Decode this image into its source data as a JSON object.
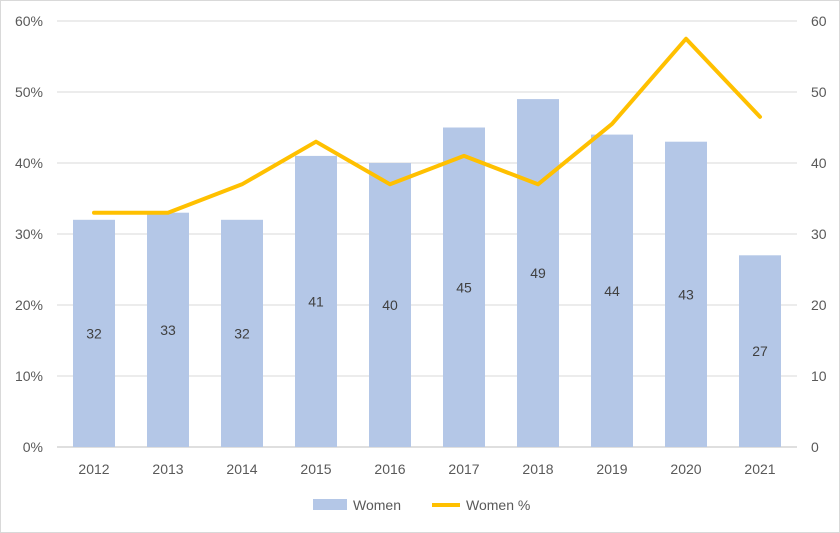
{
  "chart_data": {
    "type": "bar",
    "categories": [
      "2012",
      "2013",
      "2014",
      "2015",
      "2016",
      "2017",
      "2018",
      "2019",
      "2020",
      "2021"
    ],
    "series": [
      {
        "name": "Women",
        "type": "bar",
        "axis": "right",
        "values": [
          32,
          33,
          32,
          41,
          40,
          45,
          49,
          44,
          43,
          27
        ],
        "data_labels": [
          "32",
          "33",
          "32",
          "41",
          "40",
          "45",
          "49",
          "44",
          "43",
          "27"
        ],
        "color": "#b4c7e7"
      },
      {
        "name": "Women %",
        "type": "line",
        "axis": "left",
        "values": [
          0.33,
          0.33,
          0.37,
          0.43,
          0.37,
          0.41,
          0.37,
          0.455,
          0.575,
          0.465
        ],
        "color": "#ffc000"
      }
    ],
    "y_left": {
      "min": 0,
      "max": 0.6,
      "ticks": [
        "0%",
        "10%",
        "20%",
        "30%",
        "40%",
        "50%",
        "60%"
      ]
    },
    "y_right": {
      "min": 0,
      "max": 60,
      "ticks": [
        "0",
        "10",
        "20",
        "30",
        "40",
        "50",
        "60"
      ]
    },
    "grid": true,
    "legend": "bottom",
    "title": "",
    "xlabel": "",
    "ylabel": ""
  }
}
